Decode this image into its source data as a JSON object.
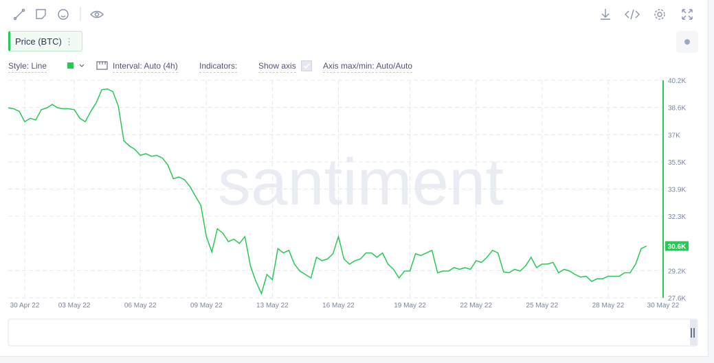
{
  "controls": {
    "style": "Style: Line",
    "interval": "Interval: Auto (4h)",
    "indicators": "Indicators:",
    "show_axis": "Show axis",
    "axis_range": "Axis max/min: Auto/Auto"
  },
  "chart_data": {
    "type": "line",
    "watermark": "santiment",
    "last_label": "30.6K",
    "grid": true,
    "ylim": [
      27600,
      40200
    ],
    "yticks": [
      {
        "value": 27600,
        "label": "27.6K"
      },
      {
        "value": 29175,
        "label": "29.2K"
      },
      {
        "value": 32325,
        "label": "32.3K"
      },
      {
        "value": 33900,
        "label": "33.9K"
      },
      {
        "value": 35475,
        "label": "35.5K"
      },
      {
        "value": 37050,
        "label": "37K"
      },
      {
        "value": 38625,
        "label": "38.6K"
      },
      {
        "value": 40200,
        "label": "40.2K"
      }
    ],
    "categories": [
      null,
      null,
      null,
      "30 Apr 22",
      null,
      null,
      null,
      null,
      null,
      null,
      null,
      null,
      "03 May 22",
      null,
      null,
      null,
      null,
      null,
      null,
      null,
      null,
      null,
      null,
      null,
      "06 May 22",
      null,
      null,
      null,
      null,
      null,
      null,
      null,
      null,
      null,
      null,
      null,
      "09 May 22",
      null,
      null,
      null,
      null,
      null,
      null,
      null,
      null,
      null,
      null,
      null,
      "13 May 22",
      null,
      null,
      null,
      null,
      null,
      null,
      null,
      null,
      null,
      null,
      null,
      "16 May 22",
      null,
      null,
      null,
      null,
      null,
      null,
      null,
      null,
      null,
      null,
      null,
      null,
      "19 May 22",
      null,
      null,
      null,
      null,
      null,
      null,
      null,
      null,
      null,
      null,
      null,
      "22 May 22",
      null,
      null,
      null,
      null,
      null,
      null,
      null,
      null,
      null,
      null,
      null,
      "25 May 22",
      null,
      null,
      null,
      null,
      null,
      null,
      null,
      null,
      null,
      null,
      null,
      "28 May 22",
      null,
      null,
      null,
      null,
      null,
      null,
      null,
      null,
      null,
      "30 May 22"
    ],
    "series": [
      {
        "name": "Price (BTC)",
        "color": "#26c953",
        "values": [
          38600,
          38550,
          38400,
          37800,
          38000,
          37900,
          38500,
          38600,
          38800,
          38600,
          38550,
          38550,
          38500,
          38000,
          37800,
          38400,
          38900,
          39650,
          39700,
          39550,
          38700,
          36700,
          36400,
          36200,
          35850,
          35950,
          35800,
          35850,
          35700,
          35300,
          34500,
          34600,
          34450,
          34050,
          33500,
          32950,
          31150,
          30250,
          31600,
          31350,
          30850,
          31000,
          30750,
          31150,
          29450,
          28550,
          27850,
          28950,
          28650,
          30450,
          30200,
          30350,
          29550,
          29150,
          28950,
          28750,
          29950,
          29750,
          29850,
          30150,
          31150,
          29850,
          29550,
          29750,
          29850,
          30200,
          30200,
          29950,
          30200,
          29550,
          29250,
          28750,
          29150,
          29150,
          30150,
          30050,
          30200,
          30350,
          29050,
          29150,
          29150,
          29350,
          29250,
          29350,
          29250,
          29750,
          29650,
          29950,
          30350,
          30200,
          29100,
          29050,
          29250,
          29150,
          29450,
          29950,
          29350,
          29550,
          29550,
          29650,
          29050,
          29250,
          29150,
          28950,
          28800,
          28850,
          28550,
          28700,
          28700,
          28850,
          28850,
          28850,
          29050,
          29050,
          29550,
          30450,
          30600,
          null,
          null,
          null
        ]
      }
    ]
  }
}
